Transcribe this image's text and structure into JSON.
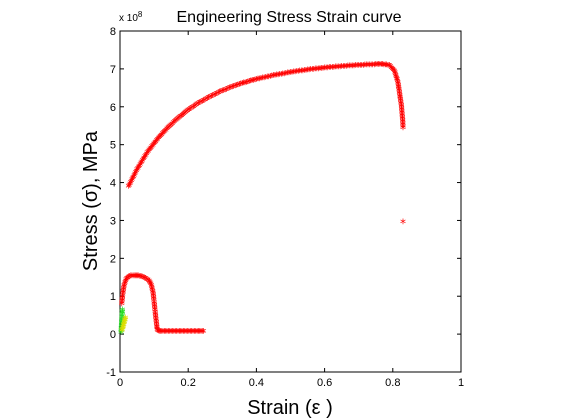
{
  "chart_data": {
    "type": "scatter",
    "title": "Engineering Stress Strain curve",
    "xlabel": "Strain (ε )",
    "ylabel": "Stress (σ), MPa",
    "xlim": [
      0,
      1
    ],
    "ylim": [
      -1,
      8
    ],
    "x_ticks": [
      "0",
      "0.2",
      "0.4",
      "0.6",
      "0.8",
      "1"
    ],
    "y_ticks": [
      "-1",
      "0",
      "1",
      "2",
      "3",
      "4",
      "5",
      "6",
      "7",
      "8"
    ],
    "y_exponent_base": "x 10",
    "y_exponent_power": "8",
    "marker": "*",
    "grid": false,
    "legend": "none",
    "series": [
      {
        "color": "#ff0000",
        "x": [
          0.025,
          0.05,
          0.08,
          0.11,
          0.14,
          0.17,
          0.2,
          0.23,
          0.26,
          0.3,
          0.35,
          0.4,
          0.45,
          0.5,
          0.55,
          0.6,
          0.65,
          0.7,
          0.75,
          0.77,
          0.79,
          0.805,
          0.815,
          0.82,
          0.825,
          0.827,
          0.829,
          0.83
        ],
        "y": [
          3.85,
          4.3,
          4.75,
          5.1,
          5.4,
          5.65,
          5.87,
          6.05,
          6.2,
          6.38,
          6.55,
          6.68,
          6.78,
          6.86,
          6.93,
          6.98,
          7.02,
          7.05,
          7.07,
          7.07,
          7.05,
          6.9,
          6.6,
          6.3,
          6.0,
          5.8,
          5.6,
          5.4
        ]
      },
      {
        "color": "#ff0000",
        "x": [
          0.83
        ],
        "y": [
          2.92
        ]
      },
      {
        "color": "#ff0000",
        "x": [
          0.005,
          0.008,
          0.012,
          0.018,
          0.025,
          0.035,
          0.045,
          0.055,
          0.065,
          0.075,
          0.085,
          0.092,
          0.097,
          0.1,
          0.103,
          0.106,
          0.108,
          0.11,
          0.115,
          0.13,
          0.15,
          0.17,
          0.19,
          0.21,
          0.23,
          0.245
        ],
        "y": [
          0.75,
          1.0,
          1.25,
          1.4,
          1.47,
          1.5,
          1.5,
          1.49,
          1.47,
          1.43,
          1.36,
          1.25,
          1.05,
          0.8,
          0.55,
          0.3,
          0.15,
          0.05,
          0.03,
          0.03,
          0.03,
          0.03,
          0.03,
          0.03,
          0.03,
          0.03
        ]
      },
      {
        "color": "#22dd22",
        "x": [
          0.003,
          0.004,
          0.005,
          0.006,
          0.007
        ],
        "y": [
          0.0,
          0.15,
          0.3,
          0.45,
          0.6
        ]
      },
      {
        "color": "#dddd00",
        "x": [
          0.006,
          0.009,
          0.012,
          0.014,
          0.016
        ],
        "y": [
          0.05,
          0.15,
          0.25,
          0.32,
          0.38
        ]
      }
    ]
  }
}
